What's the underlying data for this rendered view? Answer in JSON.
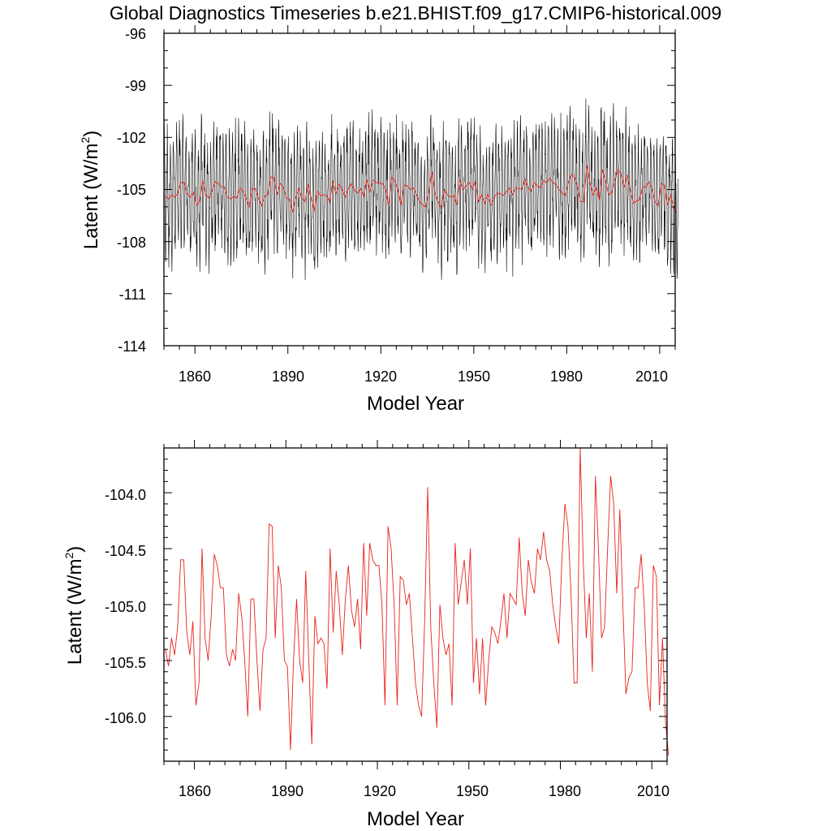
{
  "page_title": "Global Diagnostics Timeseries b.e21.BHIST.f09_g17.CMIP6-historical.009",
  "colors": {
    "monthly": "#000000",
    "annual": "#e8231c",
    "axis": "#000000"
  },
  "chart_data": [
    {
      "type": "line",
      "title": "Global Diagnostics Timeseries b.e21.BHIST.f09_g17.CMIP6-historical.009",
      "xlabel": "Model Year",
      "ylabel_main": "Latent (W/m",
      "ylabel_sup": "2",
      "ylabel_end": ")",
      "xlim": [
        1850,
        2015
      ],
      "ylim": [
        -114,
        -96
      ],
      "xticks": [
        1860,
        1890,
        1920,
        1950,
        1980,
        2010
      ],
      "xtick_labels": [
        "1860",
        "1890",
        "1920",
        "1950",
        "1980",
        "2010"
      ],
      "yticks": [
        -96,
        -99,
        -102,
        -105,
        -108,
        -111,
        -114
      ],
      "ytick_labels": [
        "-96",
        "-99",
        "-102",
        "-105",
        "-108",
        "-111",
        "-114"
      ],
      "series": [
        {
          "name": "monthly",
          "description": "dense monthly values oscillating roughly between -112 and -99 around the annual mean",
          "seasonal_amplitude": 3.0,
          "noise": 1.3
        },
        {
          "name": "annual",
          "ref": "annual_means"
        }
      ]
    },
    {
      "type": "line",
      "title": "",
      "xlabel": "Model Year",
      "ylabel_main": "Latent (W/m",
      "ylabel_sup": "2",
      "ylabel_end": ")",
      "xlim": [
        1850,
        2015
      ],
      "ylim": [
        -106.4,
        -103.6
      ],
      "xticks": [
        1860,
        1890,
        1920,
        1950,
        1980,
        2010
      ],
      "xtick_labels": [
        "1860",
        "1890",
        "1920",
        "1950",
        "1980",
        "2010"
      ],
      "yticks": [
        -104.0,
        -104.5,
        -105.0,
        -105.5,
        -106.0
      ],
      "ytick_labels": [
        "-104.0",
        "-104.5",
        "-105.0",
        "-105.5",
        "-106.0"
      ],
      "series": [
        {
          "name": "annual",
          "ref": "annual_means"
        }
      ]
    }
  ],
  "annual_means": {
    "start_year": 1850,
    "values": [
      -105.4,
      -105.55,
      -105.3,
      -105.45,
      -105.2,
      -104.6,
      -104.6,
      -105.25,
      -105.45,
      -105.15,
      -105.9,
      -105.7,
      -104.5,
      -105.3,
      -105.5,
      -105.1,
      -104.55,
      -104.65,
      -104.85,
      -104.85,
      -105.45,
      -105.55,
      -105.4,
      -105.5,
      -104.9,
      -105.1,
      -105.5,
      -106.0,
      -104.95,
      -104.95,
      -105.5,
      -105.95,
      -105.4,
      -105.3,
      -104.28,
      -104.3,
      -105.3,
      -104.65,
      -104.85,
      -105.5,
      -105.55,
      -106.3,
      -105.5,
      -104.95,
      -105.5,
      -105.7,
      -104.7,
      -105.5,
      -106.25,
      -105.1,
      -105.35,
      -105.3,
      -105.35,
      -105.75,
      -104.5,
      -105.25,
      -104.7,
      -105.0,
      -105.45,
      -104.95,
      -104.65,
      -105.05,
      -105.2,
      -104.95,
      -105.4,
      -104.45,
      -105.1,
      -104.45,
      -104.6,
      -104.65,
      -104.65,
      -105.0,
      -105.9,
      -104.3,
      -104.5,
      -105.0,
      -105.9,
      -104.75,
      -104.78,
      -105.0,
      -104.9,
      -105.3,
      -105.7,
      -105.9,
      -106.0,
      -105.15,
      -103.95,
      -105.2,
      -105.7,
      -106.1,
      -105.0,
      -105.3,
      -105.45,
      -105.35,
      -105.9,
      -104.45,
      -105.0,
      -104.8,
      -104.6,
      -105.0,
      -104.5,
      -105.7,
      -105.3,
      -105.8,
      -105.3,
      -105.9,
      -105.5,
      -105.2,
      -105.25,
      -105.35,
      -105.15,
      -104.9,
      -105.3,
      -104.9,
      -104.95,
      -105.0,
      -104.4,
      -104.9,
      -105.1,
      -104.6,
      -104.8,
      -104.9,
      -104.5,
      -104.6,
      -104.35,
      -104.6,
      -104.7,
      -105.0,
      -105.2,
      -105.35,
      -104.6,
      -104.1,
      -104.3,
      -104.9,
      -105.7,
      -105.7,
      -103.6,
      -104.6,
      -105.3,
      -104.9,
      -105.6,
      -103.85,
      -104.5,
      -105.3,
      -105.2,
      -104.5,
      -103.85,
      -104.1,
      -104.9,
      -104.15,
      -105.0,
      -105.8,
      -105.65,
      -105.6,
      -104.85,
      -104.85,
      -104.55,
      -105.0,
      -105.7,
      -105.95,
      -104.65,
      -104.75,
      -105.9,
      -105.3,
      -106.05,
      -106.35
    ]
  }
}
